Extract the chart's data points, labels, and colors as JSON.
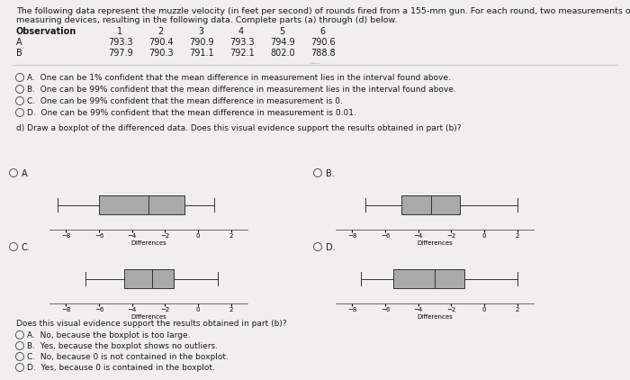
{
  "bg_color": "#f0efed",
  "text_color": "#1a1a1a",
  "box_color": "#aaaaaa",
  "fs": 7.0,
  "title_line1": "The following data represent the muzzle velocity (in feet per second) of rounds fired from a 155-mm gun. For each round, two measurements of the velocity were recorded using two different",
  "title_line2": "measuring devices, resulting in the following data. Complete parts (a) through (d) below.",
  "obs_header": "Observation    1         2         3         4         5         6",
  "row_A": "A              793.3    790.4    790.9    793.3    794.9    790.6",
  "row_B": "B              797.9    790.3    791.1    792.1    802.0    788.8",
  "mc_a": "A.  One can be 1% confident that the mean difference in measurement lies in the interval found above.",
  "mc_b": "B.  One can be 99% confident that the mean difference in measurement lies in the interval found above.",
  "mc_c": "C.  One can be 99% confident that the mean difference in measurement is 0.",
  "mc_d": "D.  One can be 99% confident that the mean difference in measurement is 0.01.",
  "part_d": "d) Draw a boxplot of the differenced data. Does this visual evidence support the results obtained in part (b)?",
  "xlim": [
    -9,
    3
  ],
  "xticks": [
    -8,
    -6,
    -4,
    -2,
    0,
    2
  ],
  "xlabel": "Differences",
  "bp_A": {
    "wlo": -8.5,
    "q1": -6.0,
    "med": -3.0,
    "q3": -0.8,
    "whi": 1.0
  },
  "bp_B": {
    "wlo": -7.2,
    "q1": -5.0,
    "med": -3.2,
    "q3": -1.5,
    "whi": 2.0
  },
  "bp_C": {
    "wlo": -6.8,
    "q1": -4.5,
    "med": -2.8,
    "q3": -1.5,
    "whi": 1.2
  },
  "bp_D": {
    "wlo": -7.5,
    "q1": -5.5,
    "med": -3.0,
    "q3": -1.2,
    "whi": 2.0
  },
  "final_q": "Does this visual evidence support the results obtained in part (b)?",
  "final_a": "A.  No, because the boxplot is too large.",
  "final_b": "B.  Yes, because the boxplot shows no outliers.",
  "final_c": "C.  No, because 0 is not contained in the boxplot.",
  "final_d": "D.  Yes, because 0 is contained in the boxplot."
}
